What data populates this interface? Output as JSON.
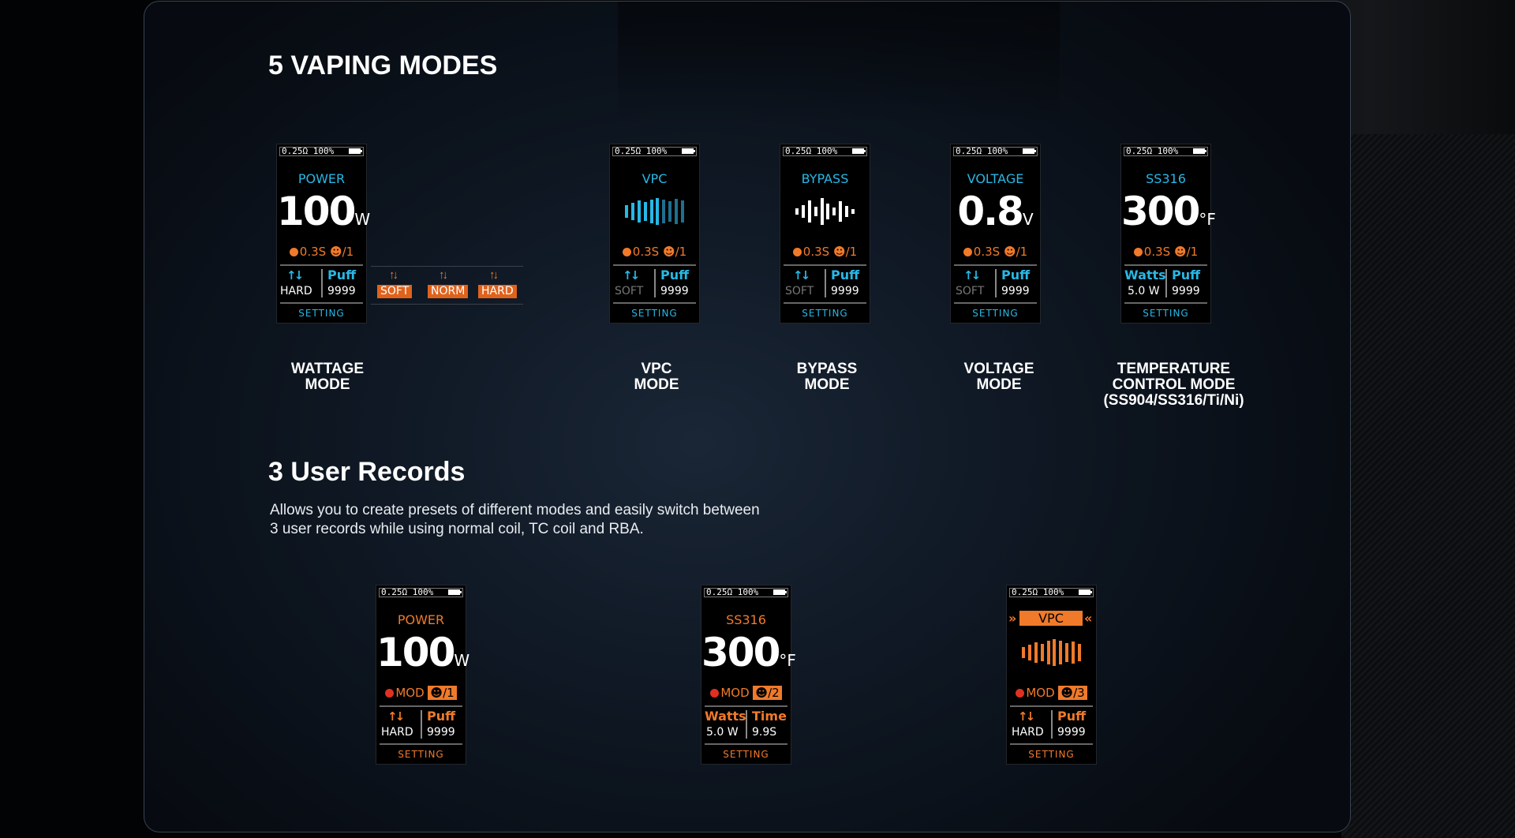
{
  "headings": {
    "modes": "5 VAPING MODES",
    "records": "3 User Records"
  },
  "records_description_line1": "Allows you to create presets of different modes and easily switch between",
  "records_description_line2": "3 user records while using normal coil, TC coil and RBA.",
  "captions": [
    "WATTAGE\nMODE",
    "VPC\nMODE",
    "BYPASS\nMODE",
    "VOLTAGE\nMODE",
    "TEMPERATURE\nCONTROL MODE\n(SS904/SS316/Ti/Ni)"
  ],
  "colors": {
    "cyan": "#27b8e6",
    "orange": "#f07a2a",
    "grey": "#777777",
    "white": "#ffffff"
  },
  "status": "0.25Ω 100%",
  "preheat": {
    "time": "0.3S",
    "user": "/1",
    "icon": "clock-icon"
  },
  "setting": "SETTING",
  "puff_label": "Puff",
  "puff_value": "9999",
  "curve_options": [
    "SOFT",
    "NORM",
    "HARD"
  ],
  "screens": {
    "wattage": {
      "mode": "POWER",
      "value": "100",
      "unit": "W",
      "curve": "HARD"
    },
    "vpc": {
      "mode": "VPC",
      "curve": "SOFT"
    },
    "bypass": {
      "mode": "BYPASS",
      "curve": "SOFT"
    },
    "voltage": {
      "mode": "VOLTAGE",
      "value": "0.8",
      "unit": "V",
      "curve": "SOFT"
    },
    "tc": {
      "mode": "SS316",
      "value": "300",
      "unit": "°F",
      "watts_label": "Watts",
      "watts_value": "5.0 W"
    }
  },
  "records": [
    {
      "mode": "POWER",
      "value": "100",
      "unit": "W",
      "mod": "MOD",
      "user": "/1",
      "left_label": "↑↓",
      "left_value": "HARD",
      "right_label": "Puff",
      "right_value": "9999"
    },
    {
      "mode": "SS316",
      "value": "300",
      "unit": "°F",
      "mod": "MOD",
      "user": "/2",
      "left_label": "Watts",
      "left_value": "5.0 W",
      "right_label": "Time",
      "right_value": "9.9S"
    },
    {
      "mode": "VPC",
      "mod": "MOD",
      "user": "/3",
      "left_label": "↑↓",
      "left_value": "HARD",
      "right_label": "Puff",
      "right_value": "9999"
    }
  ]
}
